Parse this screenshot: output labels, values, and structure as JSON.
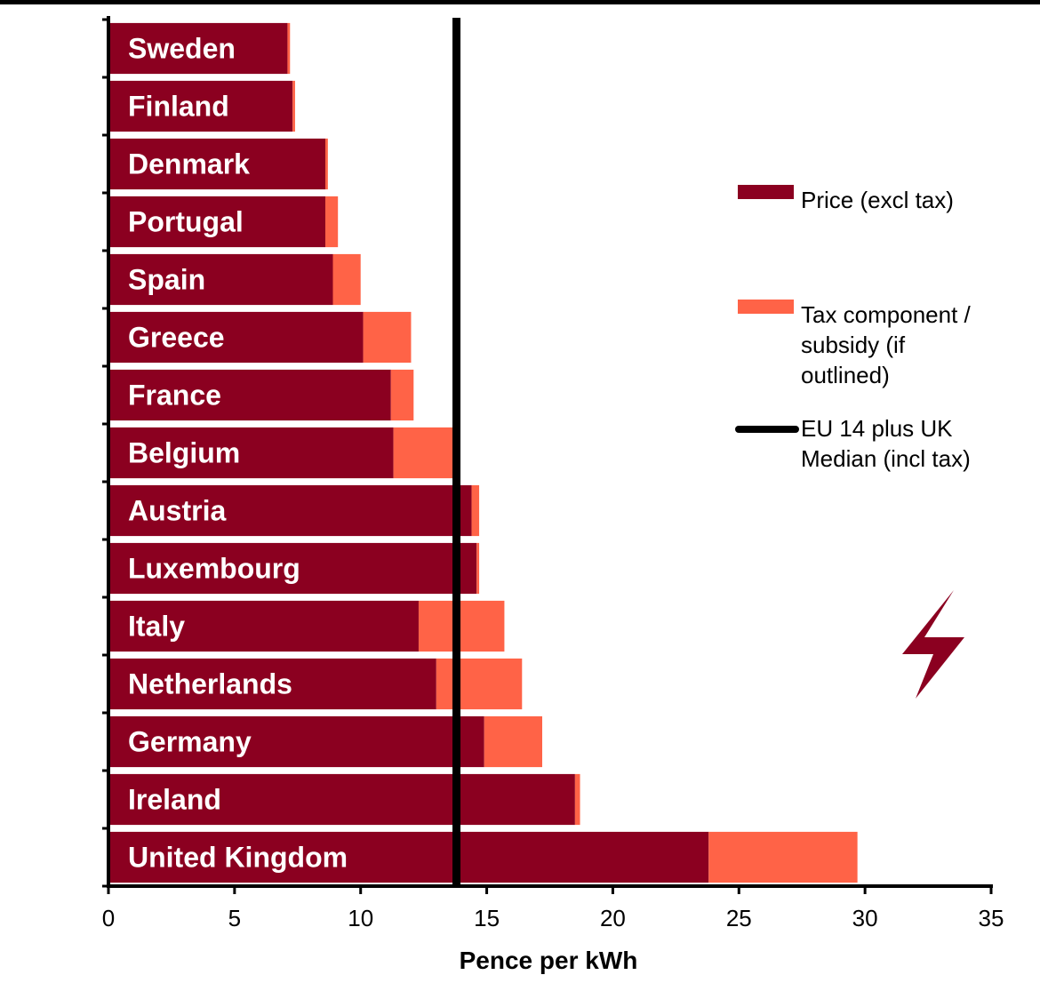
{
  "chart_data": {
    "type": "bar",
    "orientation": "horizontal",
    "stacked": true,
    "categories": [
      "Sweden",
      "Finland",
      "Denmark",
      "Portugal",
      "Spain",
      "Greece",
      "France",
      "Belgium",
      "Austria",
      "Luxembourg",
      "Italy",
      "Netherlands",
      "Germany",
      "Ireland",
      "United Kingdom"
    ],
    "series": [
      {
        "name": "Price (excl tax)",
        "color": "#8b0020",
        "values": [
          7.1,
          7.3,
          8.6,
          8.6,
          8.9,
          10.1,
          11.2,
          11.3,
          14.4,
          14.6,
          12.3,
          13.0,
          14.9,
          18.5,
          23.8
        ]
      },
      {
        "name": "Tax component / subsidy (if outlined)",
        "color": "#ff6347",
        "values": [
          0.1,
          0.1,
          0.1,
          0.5,
          1.1,
          1.9,
          0.9,
          2.4,
          0.3,
          0.1,
          3.4,
          3.4,
          2.3,
          0.2,
          5.9
        ]
      }
    ],
    "reference_line": {
      "name": "EU 14 plus UK Median (incl tax)",
      "value": 13.8,
      "color": "#000000"
    },
    "xlabel": "Pence per kWh",
    "ylabel": "",
    "title": "",
    "xlim": [
      0,
      35
    ],
    "xticks": [
      "0",
      "5",
      "10",
      "15",
      "20",
      "25",
      "30",
      "35"
    ],
    "grid": false,
    "legend": {
      "position": "right",
      "items": [
        {
          "lines": [
            "Price (excl tax)"
          ],
          "swatch": "bar",
          "color": "#8b0020"
        },
        {
          "lines": [
            "Tax component /",
            "subsidy (if",
            "outlined)"
          ],
          "swatch": "bar",
          "color": "#ff6347"
        },
        {
          "lines": [
            "EU 14 plus UK",
            "Median (incl tax)"
          ],
          "swatch": "line",
          "color": "#000000"
        }
      ]
    },
    "decoration": {
      "icon": "lightning-bolt-icon",
      "color": "#8b0020"
    }
  }
}
